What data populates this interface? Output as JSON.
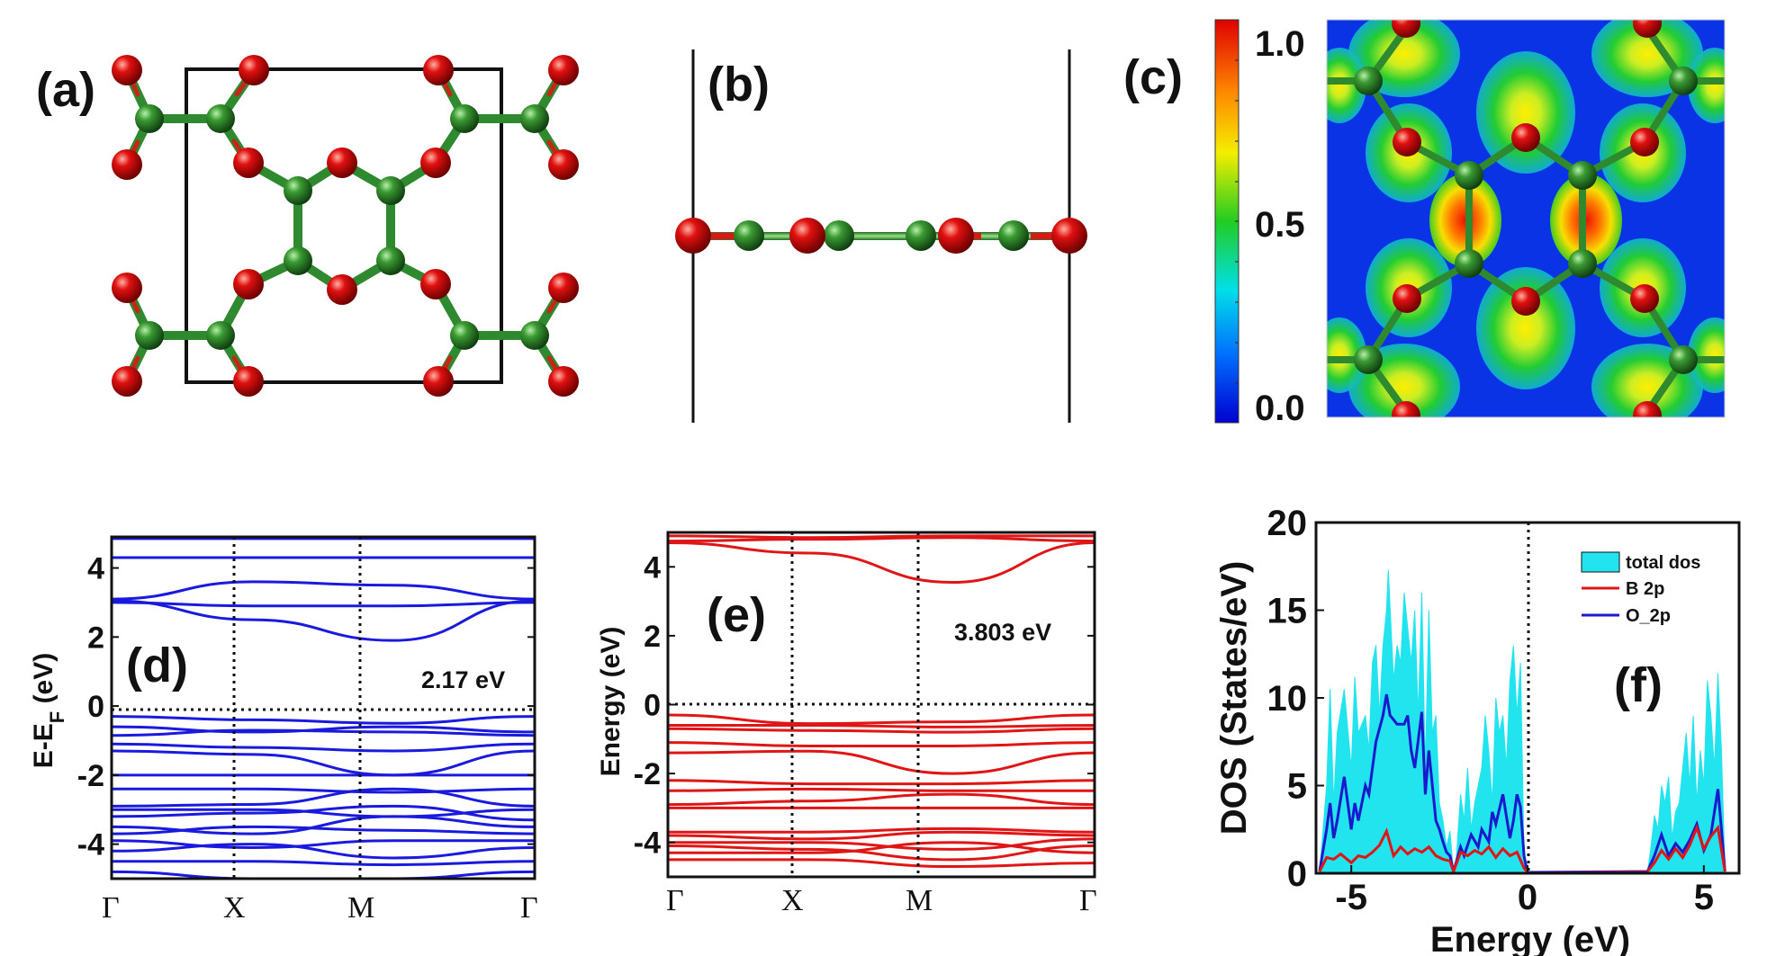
{
  "panels": {
    "a": {
      "label": "(a)"
    },
    "b": {
      "label": "(b)"
    },
    "c": {
      "label": "(c)",
      "colorbar_ticks": [
        "1.0",
        "0.5",
        "0.0"
      ]
    }
  },
  "colors": {
    "boron": "#2f8a2f",
    "oxygen": "#e01010",
    "band_d": "#1a1adf",
    "band_e": "#e01515",
    "dos_fill": "#22e4ee",
    "b2p": "#e01515",
    "o2p": "#1a1acc"
  },
  "chart_data": [
    {
      "id": "d",
      "type": "line",
      "panel_label": "(d)",
      "ylabel": "E-E",
      "ylabel_subscript": "F",
      "ylabel_unit": " (eV)",
      "ylim": [
        -5,
        4.9
      ],
      "yticks": [
        "4",
        "2",
        "0",
        "-2",
        "-4"
      ],
      "ytick_values": [
        4,
        2,
        0,
        -2,
        -4
      ],
      "kpoints": [
        "Γ",
        "X",
        "M",
        "Γ"
      ],
      "kpoint_positions": [
        0,
        1,
        2,
        3
      ],
      "annotation": "2.17 eV",
      "fermi_level": 0,
      "bands": [
        [
          4.85,
          4.85,
          4.85,
          4.85
        ],
        [
          4.3,
          4.3,
          4.3,
          4.3
        ],
        [
          3.1,
          3.6,
          3.5,
          3.1
        ],
        [
          3.0,
          2.9,
          2.9,
          3.0
        ],
        [
          3.05,
          2.5,
          1.9,
          3.05
        ],
        [
          -0.3,
          -0.4,
          -0.5,
          -0.3
        ],
        [
          -0.6,
          -0.75,
          -0.6,
          -0.75
        ],
        [
          -0.85,
          -0.7,
          -0.75,
          -0.85
        ],
        [
          -1.1,
          -1.2,
          -1.3,
          -1.1
        ],
        [
          -1.3,
          -1.4,
          -2.0,
          -1.3
        ],
        [
          -2.0,
          -2.0,
          -2.0,
          -2.0
        ],
        [
          -2.4,
          -2.4,
          -2.5,
          -2.4
        ],
        [
          -2.9,
          -2.85,
          -2.4,
          -2.9
        ],
        [
          -3.0,
          -3.0,
          -3.2,
          -3.0
        ],
        [
          -3.2,
          -3.1,
          -2.9,
          -3.3
        ],
        [
          -3.5,
          -3.7,
          -3.2,
          -3.5
        ],
        [
          -3.7,
          -3.5,
          -3.6,
          -3.7
        ],
        [
          -3.9,
          -4.1,
          -3.9,
          -3.9
        ],
        [
          -4.2,
          -4.0,
          -4.4,
          -4.1
        ],
        [
          -4.5,
          -4.5,
          -4.6,
          -4.5
        ],
        [
          -4.8,
          -5.0,
          -5.0,
          -4.8
        ]
      ]
    },
    {
      "id": "e",
      "type": "line",
      "panel_label": "(e)",
      "ylabel": "Energy (eV)",
      "ylim": [
        -5,
        5
      ],
      "yticks": [
        "4",
        "2",
        "0",
        "-2",
        "-4"
      ],
      "ytick_values": [
        4,
        2,
        0,
        -2,
        -4
      ],
      "kpoints": [
        "Γ",
        "X",
        "M",
        "Γ"
      ],
      "kpoint_positions": [
        0,
        1,
        2,
        3
      ],
      "annotation": "3.803 eV",
      "fermi_level": 0,
      "bands": [
        [
          4.9,
          4.85,
          4.9,
          4.9
        ],
        [
          4.75,
          4.8,
          4.85,
          4.75
        ],
        [
          4.7,
          4.4,
          3.55,
          4.7
        ],
        [
          -0.3,
          -0.55,
          -0.5,
          -0.3
        ],
        [
          -0.6,
          -0.6,
          -0.65,
          -0.6
        ],
        [
          -0.7,
          -0.75,
          -0.8,
          -0.7
        ],
        [
          -1.1,
          -1.2,
          -1.2,
          -1.1
        ],
        [
          -1.4,
          -1.35,
          -2.0,
          -1.4
        ],
        [
          -2.2,
          -2.3,
          -2.3,
          -2.2
        ],
        [
          -2.5,
          -2.45,
          -2.5,
          -2.5
        ],
        [
          -2.9,
          -2.8,
          -2.6,
          -2.9
        ],
        [
          -3.0,
          -3.0,
          -3.0,
          -3.0
        ],
        [
          -3.7,
          -3.7,
          -3.6,
          -3.7
        ],
        [
          -3.8,
          -3.9,
          -3.7,
          -3.8
        ],
        [
          -4.0,
          -4.0,
          -4.2,
          -3.9
        ],
        [
          -4.1,
          -4.2,
          -4.5,
          -4.1
        ],
        [
          -4.3,
          -4.3,
          -4.0,
          -4.3
        ],
        [
          -4.5,
          -4.5,
          -4.7,
          -4.6
        ]
      ]
    },
    {
      "id": "f",
      "type": "area",
      "panel_label": "(f)",
      "xlabel": "Energy (eV)",
      "ylabel": "DOS (States/eV)",
      "xlim": [
        -6,
        6
      ],
      "ylim": [
        0,
        20
      ],
      "xticks": [
        "-5",
        "0",
        "5"
      ],
      "xtick_values": [
        -5,
        0,
        5
      ],
      "yticks": [
        "20",
        "15",
        "10",
        "5",
        "0"
      ],
      "ytick_values": [
        20,
        15,
        10,
        5,
        0
      ],
      "fermi_level": 0,
      "legend": [
        "total dos",
        "B 2p",
        "O_2p"
      ],
      "legend_position": "top-right",
      "series": [
        {
          "name": "total dos",
          "x": [
            -5.9,
            -5.7,
            -5.6,
            -5.5,
            -5.4,
            -5.2,
            -5.0,
            -4.9,
            -4.8,
            -4.6,
            -4.5,
            -4.4,
            -4.3,
            -4.2,
            -4.1,
            -4.0,
            -3.95,
            -3.8,
            -3.7,
            -3.6,
            -3.5,
            -3.4,
            -3.3,
            -3.2,
            -3.1,
            -3.0,
            -2.9,
            -2.8,
            -2.7,
            -2.6,
            -2.5,
            -2.4,
            -2.3,
            -2.2,
            -2.1,
            -2.05,
            -1.9,
            -1.8,
            -1.7,
            -1.6,
            -1.5,
            -1.4,
            -1.3,
            -1.2,
            -1.1,
            -1.0,
            -0.9,
            -0.8,
            -0.7,
            -0.6,
            -0.5,
            -0.4,
            -0.3,
            -0.2,
            -0.1,
            0.0,
            3.4,
            3.5,
            3.6,
            3.7,
            3.8,
            3.9,
            4.0,
            4.1,
            4.2,
            4.3,
            4.4,
            4.5,
            4.6,
            4.7,
            4.8,
            4.9,
            5.0,
            5.1,
            5.2,
            5.3,
            5.4,
            5.5,
            5.6
          ],
          "values": [
            0,
            5,
            10.5,
            4,
            8,
            10.5,
            6,
            11.2,
            8,
            9,
            7,
            12,
            13,
            9,
            13,
            15,
            17.3,
            11,
            13,
            12,
            16,
            14,
            12,
            15,
            9,
            16,
            6,
            15,
            8,
            9,
            4,
            3,
            1.5,
            2.4,
            0,
            0,
            4.5,
            3,
            6,
            2.5,
            4,
            5,
            6,
            9,
            7,
            4,
            10,
            8,
            9,
            6,
            11,
            13,
            9,
            12,
            1,
            0,
            0,
            1.5,
            3.3,
            2.5,
            5,
            4,
            5.5,
            2,
            3.5,
            4,
            6,
            8,
            5,
            9,
            4,
            7,
            5,
            11,
            9,
            6,
            11.4,
            7,
            0
          ]
        },
        {
          "name": "B 2p",
          "x": [
            -5.9,
            -5.7,
            -5.5,
            -5.3,
            -5.0,
            -4.8,
            -4.6,
            -4.4,
            -4.2,
            -4.0,
            -3.8,
            -3.6,
            -3.4,
            -3.2,
            -3.0,
            -2.8,
            -2.6,
            -2.4,
            -2.2,
            -2.1,
            -1.9,
            -1.7,
            -1.5,
            -1.3,
            -1.1,
            -0.9,
            -0.7,
            -0.5,
            -0.3,
            -0.1,
            0.0,
            3.4,
            3.6,
            3.8,
            4.0,
            4.2,
            4.4,
            4.6,
            4.8,
            5.0,
            5.2,
            5.4,
            5.6
          ],
          "values": [
            0.1,
            0.9,
            0.8,
            1.1,
            0.6,
            1.0,
            0.9,
            1.2,
            1.6,
            2.4,
            1.0,
            1.5,
            1.1,
            1.4,
            1.2,
            1.5,
            1.0,
            0.8,
            0.7,
            0.1,
            1.2,
            1.0,
            1.3,
            1.1,
            1.5,
            0.9,
            1.4,
            1.0,
            1.2,
            0.3,
            0.05,
            0.1,
            0.6,
            1.3,
            0.8,
            1.4,
            0.9,
            1.6,
            2.6,
            1.4,
            2.1,
            2.6,
            0.1
          ]
        },
        {
          "name": "O_2p",
          "x": [
            -5.9,
            -5.7,
            -5.6,
            -5.5,
            -5.4,
            -5.2,
            -5.0,
            -4.9,
            -4.8,
            -4.6,
            -4.5,
            -4.3,
            -4.1,
            -4.0,
            -3.9,
            -3.7,
            -3.5,
            -3.4,
            -3.3,
            -3.2,
            -3.0,
            -2.9,
            -2.8,
            -2.6,
            -2.5,
            -2.4,
            -2.3,
            -2.2,
            -2.1,
            -1.9,
            -1.8,
            -1.6,
            -1.4,
            -1.3,
            -1.1,
            -1.0,
            -0.9,
            -0.7,
            -0.5,
            -0.4,
            -0.3,
            -0.2,
            -0.1,
            0.0,
            3.4,
            3.6,
            3.8,
            4.0,
            4.2,
            4.4,
            4.6,
            4.8,
            5.0,
            5.2,
            5.4,
            5.5,
            5.6
          ],
          "values": [
            0.1,
            2.5,
            4.0,
            2.0,
            3.0,
            5.5,
            2.5,
            4.0,
            3.0,
            5.0,
            4.5,
            7.5,
            9.0,
            10.2,
            9.0,
            8.5,
            8.5,
            9.0,
            7.0,
            6.0,
            9.2,
            4.5,
            7.0,
            3.0,
            2.5,
            1.8,
            1.2,
            1.0,
            0.1,
            1.5,
            1.0,
            2.2,
            1.5,
            2.5,
            1.8,
            3.5,
            2.8,
            4.5,
            2.0,
            3.0,
            4.5,
            3.8,
            1.0,
            0.0,
            0.1,
            1.0,
            2.2,
            1.0,
            1.7,
            1.2,
            1.9,
            2.8,
            1.3,
            2.2,
            4.8,
            2.5,
            0.1
          ]
        }
      ]
    }
  ]
}
